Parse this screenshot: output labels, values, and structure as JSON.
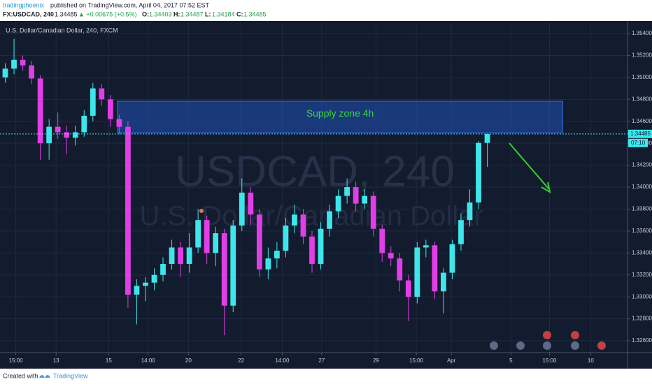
{
  "header": {
    "publisher": "tradingphoenix",
    "published": "published on TradingView.com, April 04, 2017 07:52 EST",
    "symbol": "FX:USDCAD, 240",
    "last": "1.34485",
    "change": "▲ +0.00675 (+0.5%)",
    "ohlc": [
      {
        "key": "O:",
        "value": "1.34403"
      },
      {
        "key": "H:",
        "value": "1.34487"
      },
      {
        "key": "L:",
        "value": "1.34184"
      },
      {
        "key": "C:",
        "value": "1.34485"
      }
    ]
  },
  "footer": {
    "created": "Created with",
    "brand": "TradingView"
  },
  "chart_data": {
    "type": "candlestick",
    "title": "U.S. Dollar/Canadian Dollar, 240, FXCM",
    "watermark": [
      "USDCAD, 240",
      "U.S. Dollar/Canadian Dollar"
    ],
    "up_color": "#3ee6ec",
    "down_color": "#e23ee8",
    "x": [
      0,
      1,
      2,
      3,
      4,
      5,
      6,
      7,
      8,
      9,
      10,
      11,
      12,
      13,
      14,
      15,
      16,
      17,
      18,
      19,
      20,
      21,
      22,
      23,
      24,
      25,
      26,
      27,
      28,
      29,
      30,
      31,
      32,
      33,
      34,
      35,
      36,
      37,
      38,
      39,
      40,
      41,
      42,
      43,
      44,
      45,
      46,
      47,
      48,
      49,
      50,
      51,
      52,
      53,
      54,
      55
    ],
    "open": [
      1.35,
      1.3508,
      1.3516,
      1.3511,
      1.3499,
      1.344,
      1.3455,
      1.345,
      1.3445,
      1.345,
      1.3465,
      1.349,
      1.348,
      1.3462,
      1.3455,
      1.3302,
      1.331,
      1.3313,
      1.332,
      1.333,
      1.3345,
      1.333,
      1.3345,
      1.337,
      1.334,
      1.3358,
      1.3292,
      1.3365,
      1.3395,
      1.3375,
      1.3325,
      1.3335,
      1.3342,
      1.3365,
      1.3375,
      1.3355,
      1.333,
      1.3362,
      1.3378,
      1.3392,
      1.34,
      1.3385,
      1.3392,
      1.3362,
      1.334,
      1.3335,
      1.3315,
      1.33,
      1.3345,
      1.3347,
      1.3305,
      1.3322,
      1.3348,
      1.337,
      1.3386,
      1.34403
    ],
    "high": [
      1.3513,
      1.3535,
      1.352,
      1.3515,
      1.3502,
      1.3462,
      1.3468,
      1.3456,
      1.3456,
      1.347,
      1.3495,
      1.3494,
      1.3484,
      1.3466,
      1.346,
      1.3316,
      1.3318,
      1.3326,
      1.3336,
      1.3352,
      1.335,
      1.3358,
      1.338,
      1.3374,
      1.3364,
      1.3362,
      1.337,
      1.3408,
      1.34,
      1.338,
      1.3345,
      1.335,
      1.3372,
      1.3384,
      1.338,
      1.336,
      1.3368,
      1.3384,
      1.3398,
      1.3408,
      1.3405,
      1.3398,
      1.3396,
      1.3366,
      1.3346,
      1.334,
      1.332,
      1.335,
      1.3352,
      1.335,
      1.3326,
      1.3352,
      1.3376,
      1.3398,
      1.3442,
      1.34487
    ],
    "low": [
      1.3495,
      1.3503,
      1.3506,
      1.3494,
      1.3425,
      1.3425,
      1.3444,
      1.343,
      1.3438,
      1.3446,
      1.346,
      1.3474,
      1.3455,
      1.3448,
      1.329,
      1.3275,
      1.3296,
      1.3306,
      1.3314,
      1.3325,
      1.3318,
      1.3322,
      1.334,
      1.333,
      1.3328,
      1.3265,
      1.3286,
      1.336,
      1.3365,
      1.3318,
      1.3316,
      1.3326,
      1.3336,
      1.3358,
      1.3348,
      1.3322,
      1.3325,
      1.3355,
      1.3372,
      1.3385,
      1.3378,
      1.338,
      1.3355,
      1.3332,
      1.3328,
      1.3305,
      1.3278,
      1.3294,
      1.3336,
      1.3298,
      1.3285,
      1.3316,
      1.3342,
      1.3364,
      1.338,
      1.34184
    ],
    "close": [
      1.3508,
      1.3516,
      1.3511,
      1.3499,
      1.344,
      1.3455,
      1.345,
      1.3445,
      1.345,
      1.3465,
      1.349,
      1.348,
      1.3462,
      1.3455,
      1.3302,
      1.331,
      1.3313,
      1.332,
      1.333,
      1.3345,
      1.333,
      1.3345,
      1.337,
      1.334,
      1.3358,
      1.3292,
      1.3365,
      1.3395,
      1.3375,
      1.3325,
      1.3335,
      1.3342,
      1.3365,
      1.3375,
      1.3355,
      1.333,
      1.3362,
      1.3378,
      1.3392,
      1.34,
      1.3385,
      1.3392,
      1.3362,
      1.334,
      1.3335,
      1.3315,
      1.33,
      1.3345,
      1.3347,
      1.3305,
      1.3322,
      1.3348,
      1.337,
      1.3386,
      1.34403,
      1.34485
    ],
    "current_price": 1.34485,
    "countdown": "07:10",
    "zone": {
      "label": "Supply zone 4h",
      "x": [
        12.8,
        63.6
      ],
      "y": [
        1.34496,
        1.34783
      ],
      "color": "#1f56c8"
    },
    "xlim": [
      -0.6,
      71
    ],
    "ylim": [
      1.32492,
      1.35502
    ],
    "grid": true,
    "xticks": [
      {
        "value": 1.2,
        "label": "15:00"
      },
      {
        "value": 5.8,
        "label": "13"
      },
      {
        "value": 11.8,
        "label": "15"
      },
      {
        "value": 16.3,
        "label": "14:00"
      },
      {
        "value": 20.9,
        "label": "20"
      },
      {
        "value": 26.9,
        "label": "22"
      },
      {
        "value": 31.6,
        "label": "14:00"
      },
      {
        "value": 36.1,
        "label": "27"
      },
      {
        "value": 42.3,
        "label": "29"
      },
      {
        "value": 46.9,
        "label": "15:00"
      },
      {
        "value": 50.9,
        "label": "Apr"
      },
      {
        "value": 57.7,
        "label": "5"
      },
      {
        "value": 62.1,
        "label": "15:00"
      },
      {
        "value": 66.8,
        "label": "10"
      }
    ],
    "yticks": [
      {
        "value": 1.326,
        "label": "1.32600"
      },
      {
        "value": 1.328,
        "label": "1.32800"
      },
      {
        "value": 1.33,
        "label": "1.33000"
      },
      {
        "value": 1.332,
        "label": "1.33200"
      },
      {
        "value": 1.334,
        "label": "1.33400"
      },
      {
        "value": 1.336,
        "label": "1.33600"
      },
      {
        "value": 1.338,
        "label": "1.33800"
      },
      {
        "value": 1.34,
        "label": "1.34000"
      },
      {
        "value": 1.342,
        "label": "1.34200"
      },
      {
        "value": 1.344,
        "label": "1.34400"
      },
      {
        "value": 1.346,
        "label": "1.34600"
      },
      {
        "value": 1.348,
        "label": "1.34800"
      },
      {
        "value": 1.35,
        "label": "1.35000"
      },
      {
        "value": 1.352,
        "label": "1.35200"
      },
      {
        "value": 1.354,
        "label": "1.35400"
      }
    ]
  }
}
